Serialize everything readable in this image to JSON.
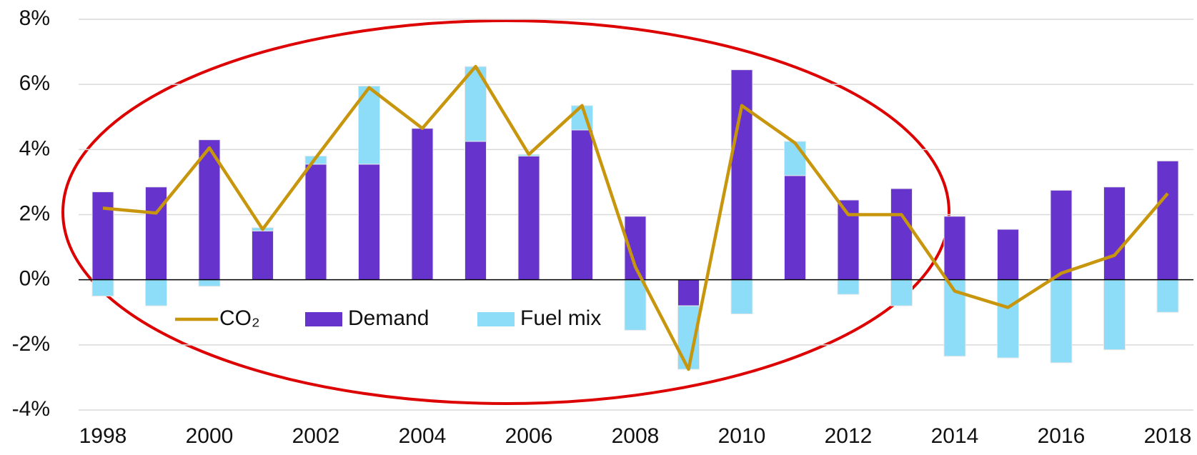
{
  "chart_data": {
    "type": "bar",
    "categories": [
      "1998",
      null,
      "2000",
      null,
      "2002",
      null,
      "2004",
      null,
      "2006",
      null,
      "2008",
      null,
      "2010",
      null,
      "2012",
      null,
      "2014",
      null,
      "2016",
      null,
      "2018"
    ],
    "series": [
      {
        "name": "Demand",
        "type": "bar",
        "color": "#6633cc",
        "values": [
          2.7,
          2.85,
          4.3,
          1.5,
          3.55,
          3.55,
          4.65,
          4.25,
          3.8,
          4.6,
          1.95,
          -0.8,
          6.45,
          3.2,
          2.45,
          2.8,
          1.95,
          1.55,
          2.75,
          2.85,
          3.65
        ]
      },
      {
        "name": "Fuel mix",
        "type": "bar",
        "color": "#8ddcf8",
        "values": [
          -0.5,
          -0.8,
          -0.2,
          0.1,
          0.25,
          2.4,
          0,
          2.3,
          0.05,
          0.75,
          -1.55,
          -1.95,
          -1.05,
          1.05,
          -0.45,
          -0.8,
          -2.35,
          -2.4,
          -2.55,
          -2.15,
          -1.0
        ]
      },
      {
        "name": "CO₂",
        "type": "line",
        "color": "#c8960c",
        "values": [
          2.2,
          2.05,
          4.05,
          1.55,
          3.75,
          5.9,
          4.65,
          6.55,
          3.85,
          5.35,
          0.4,
          -2.75,
          5.35,
          4.2,
          2.0,
          2.0,
          -0.35,
          -0.85,
          0.2,
          0.75,
          2.65
        ]
      }
    ],
    "ylim": [
      -4,
      8
    ],
    "yticks": [
      {
        "value": -4,
        "label": "-4%"
      },
      {
        "value": -2,
        "label": "-2%"
      },
      {
        "value": 0,
        "label": "0%"
      },
      {
        "value": 2,
        "label": "2%"
      },
      {
        "value": 4,
        "label": "4%"
      },
      {
        "value": 6,
        "label": "6%"
      },
      {
        "value": 8,
        "label": "8%"
      }
    ],
    "grid": true
  }
}
